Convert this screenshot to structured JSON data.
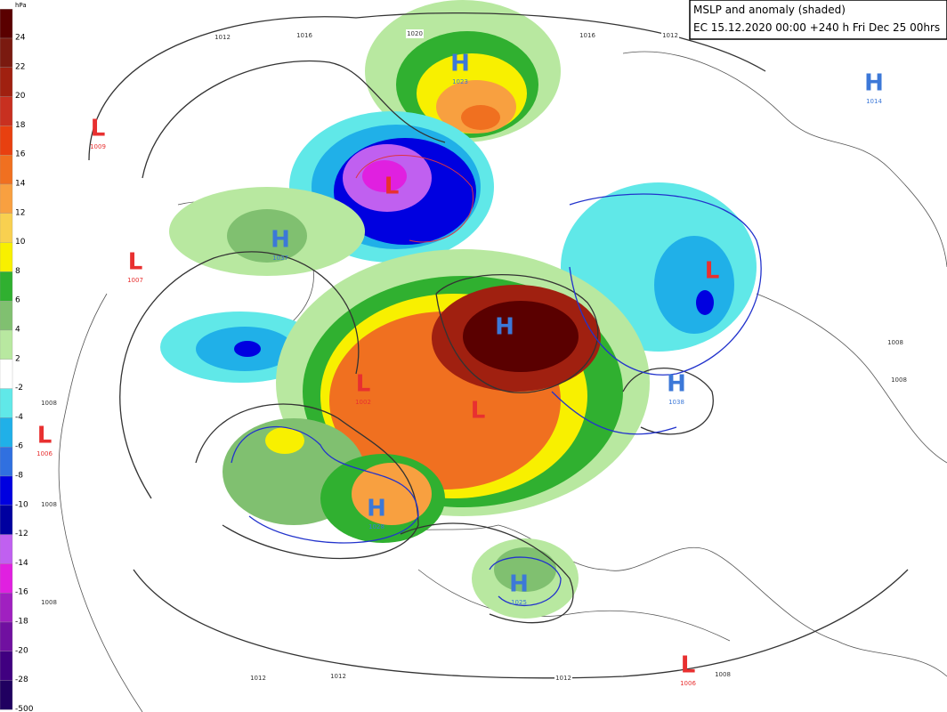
{
  "header": {
    "title": "MSLP and anomaly (shaded)",
    "subtitle": "EC 15.12.2020 00:00  +240 h Fri Dec 25 00hrs"
  },
  "legend": {
    "unit": "hPa",
    "levels": [
      {
        "label": "24",
        "color": "#5a0000"
      },
      {
        "label": "22",
        "color": "#7a1a10"
      },
      {
        "label": "20",
        "color": "#a02010"
      },
      {
        "label": "18",
        "color": "#c83020"
      },
      {
        "label": "16",
        "color": "#e84010"
      },
      {
        "label": "14",
        "color": "#f07020"
      },
      {
        "label": "12",
        "color": "#f8a040"
      },
      {
        "label": "10",
        "color": "#f8d050"
      },
      {
        "label": "8",
        "color": "#f8f000"
      },
      {
        "label": "6",
        "color": "#30b030"
      },
      {
        "label": "4",
        "color": "#80c070"
      },
      {
        "label": "2",
        "color": "#b8e8a0"
      },
      {
        "label": "-2",
        "color": "#ffffff"
      },
      {
        "label": "-4",
        "color": "#60e8e8"
      },
      {
        "label": "-6",
        "color": "#20b0e8"
      },
      {
        "label": "-8",
        "color": "#3070e0"
      },
      {
        "label": "-10",
        "color": "#0000e0"
      },
      {
        "label": "-12",
        "color": "#0000a0"
      },
      {
        "label": "-14",
        "color": "#c060f0"
      },
      {
        "label": "-16",
        "color": "#e020e0"
      },
      {
        "label": "-18",
        "color": "#a020c0"
      },
      {
        "label": "-20",
        "color": "#7010a0"
      },
      {
        "label": "-28",
        "color": "#400080"
      },
      {
        "label": "-500",
        "color": "#200060"
      }
    ]
  },
  "centers": [
    {
      "letter": "L",
      "value": "1009"
    },
    {
      "letter": "H",
      "value": "1023"
    },
    {
      "letter": "L"
    },
    {
      "letter": "H",
      "value": "1037"
    },
    {
      "letter": "L",
      "value": "1007"
    },
    {
      "letter": "H"
    },
    {
      "letter": "L",
      "value": "1002"
    },
    {
      "letter": "L"
    },
    {
      "letter": "H",
      "value": "1028"
    },
    {
      "letter": "H",
      "value": "1025"
    },
    {
      "letter": "L",
      "value": "1006"
    },
    {
      "letter": "H",
      "value": "1014"
    },
    {
      "letter": "L"
    },
    {
      "letter": "H",
      "value": "1038"
    },
    {
      "letter": "L",
      "value": "1006"
    }
  ],
  "isobar_labels": [
    "1012",
    "1016",
    "1020",
    "1016",
    "1012",
    "1008",
    "1008",
    "1012",
    "1012",
    "1012",
    "1008",
    "1008",
    "1008",
    "1008"
  ]
}
